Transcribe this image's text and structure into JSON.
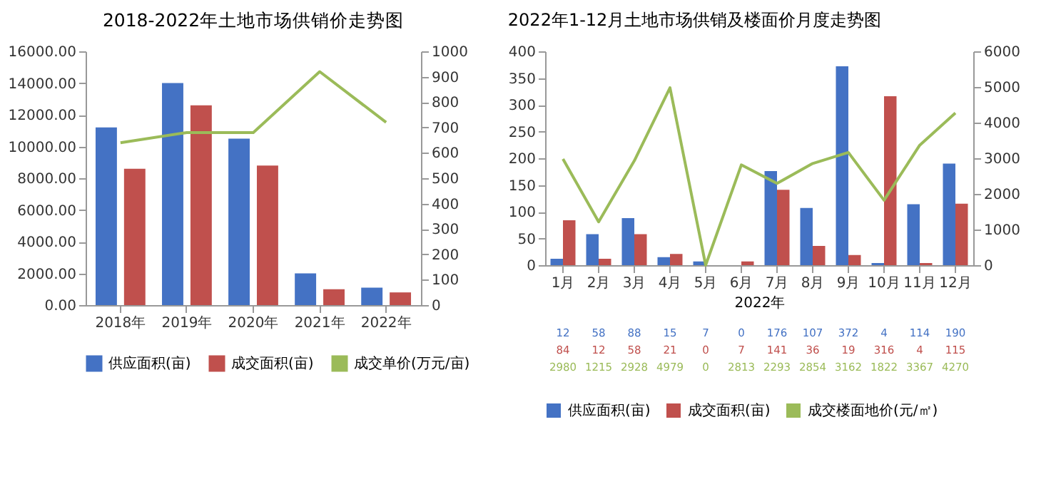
{
  "chart_data": [
    {
      "type": "bar",
      "title": "2018-2022年土地市场供销价走势图",
      "categories": [
        "2018年",
        "2019年",
        "2020年",
        "2021年",
        "2022年"
      ],
      "series": [
        {
          "name": "供应面积(亩)",
          "color": "#4472c4",
          "values": [
            11200,
            14000,
            10500,
            2000,
            1100
          ]
        },
        {
          "name": "成交面积(亩)",
          "color": "#c0504d",
          "values": [
            8600,
            12600,
            8800,
            1000,
            800
          ]
        },
        {
          "name": "成交单价(万元/亩)",
          "color": "#9bbb59",
          "type": "line",
          "axis": "y2",
          "values": [
            640,
            680,
            680,
            920,
            720
          ]
        }
      ],
      "ylim": [
        0,
        16000
      ],
      "yticks": [
        {
          "value": 0,
          "label": "0.00"
        },
        {
          "value": 2000,
          "label": "2000.00"
        },
        {
          "value": 4000,
          "label": "4000.00"
        },
        {
          "value": 6000,
          "label": "6000.00"
        },
        {
          "value": 8000,
          "label": "8000.00"
        },
        {
          "value": 10000,
          "label": "10000.00"
        },
        {
          "value": 12000,
          "label": "12000.00"
        },
        {
          "value": 14000,
          "label": "14000.00"
        },
        {
          "value": 16000,
          "label": "16000.00"
        }
      ],
      "y2lim": [
        0,
        1000
      ],
      "y2ticks": [
        0,
        100,
        200,
        300,
        400,
        500,
        600,
        700,
        800,
        900,
        1000
      ],
      "legend": "bottom"
    },
    {
      "type": "bar",
      "title": "2022年1-12月土地市场供销及楼面价月度走势图",
      "xlabel": "2022年",
      "categories": [
        "1月",
        "2月",
        "3月",
        "4月",
        "5月",
        "6月",
        "7月",
        "8月",
        "9月",
        "10月",
        "11月",
        "12月"
      ],
      "series": [
        {
          "name": "供应面积(亩)",
          "color": "#4472c4",
          "values": [
            12,
            58,
            88,
            15,
            7,
            0,
            176,
            107,
            372,
            4,
            114,
            190
          ]
        },
        {
          "name": "成交面积(亩)",
          "color": "#c0504d",
          "values": [
            84,
            12,
            58,
            21,
            0,
            7,
            141,
            36,
            19,
            316,
            4,
            115
          ]
        },
        {
          "name": "成交楼面地价(元/㎡)",
          "color": "#9bbb59",
          "type": "line",
          "axis": "y2",
          "values": [
            2980,
            1215,
            2928,
            4979,
            0,
            2813,
            2293,
            2854,
            3162,
            1822,
            3367,
            4270
          ]
        }
      ],
      "ylim": [
        0,
        400
      ],
      "yticks": [
        0,
        50,
        100,
        150,
        200,
        250,
        300,
        350,
        400
      ],
      "y2lim": [
        0,
        6000
      ],
      "y2ticks": [
        0,
        1000,
        2000,
        3000,
        4000,
        5000,
        6000
      ],
      "data_labels": true,
      "legend": "bottom left"
    }
  ]
}
